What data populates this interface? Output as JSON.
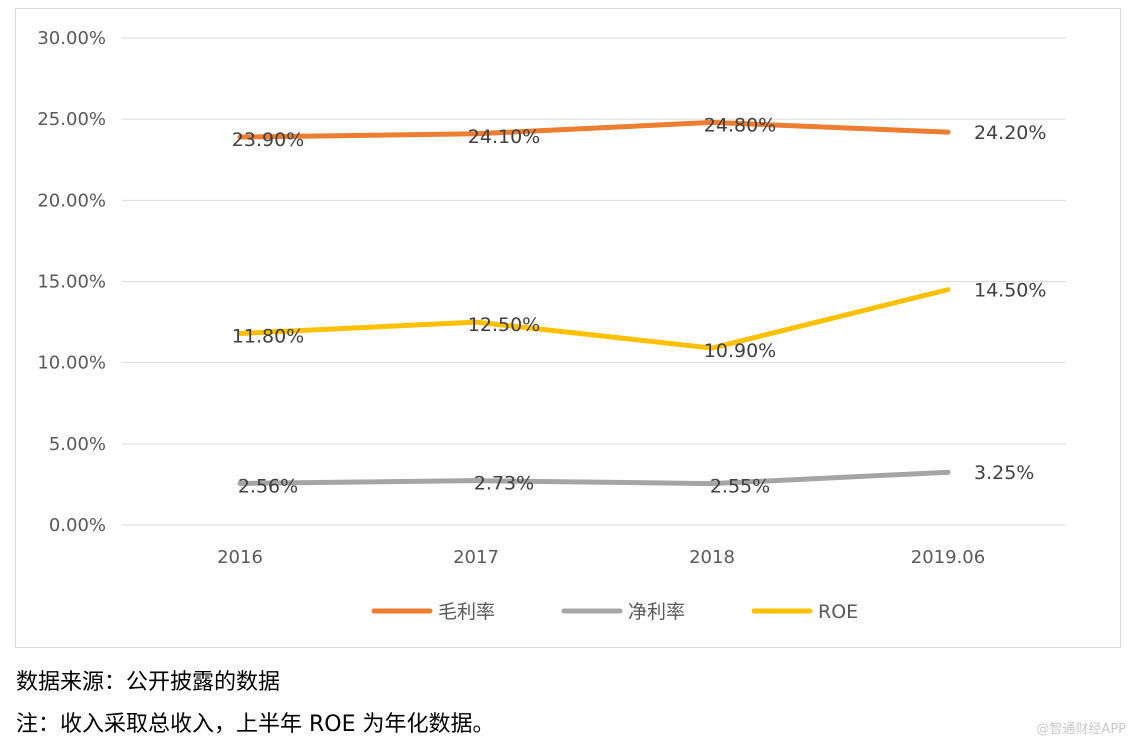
{
  "chart_data": {
    "type": "line",
    "categories": [
      "2016",
      "2017",
      "2018",
      "2019.06"
    ],
    "ylim": [
      0,
      30
    ],
    "yticks": [
      "0.00%",
      "5.00%",
      "10.00%",
      "15.00%",
      "20.00%",
      "25.00%",
      "30.00%"
    ],
    "series": [
      {
        "name": "毛利率",
        "color": "#ED7D31",
        "values": [
          23.9,
          24.1,
          24.8,
          24.2
        ],
        "labels": [
          "23.90%",
          "24.10%",
          "24.80%",
          "24.20%"
        ]
      },
      {
        "name": "净利率",
        "color": "#A5A5A5",
        "values": [
          2.56,
          2.73,
          2.55,
          3.25
        ],
        "labels": [
          "2.56%",
          "2.73%",
          "2.55%",
          "3.25%"
        ]
      },
      {
        "name": "ROE",
        "color": "#FFC000",
        "values": [
          11.8,
          12.5,
          10.9,
          14.5
        ],
        "labels": [
          "11.80%",
          "12.50%",
          "10.90%",
          "14.50%"
        ]
      }
    ],
    "legend_position": "bottom",
    "grid": true
  },
  "notes": {
    "source": "数据来源：公开披露的数据",
    "remark": "注：收入采取总收入，上半年 ROE 为年化数据。"
  },
  "watermark": "@智通财经APP"
}
